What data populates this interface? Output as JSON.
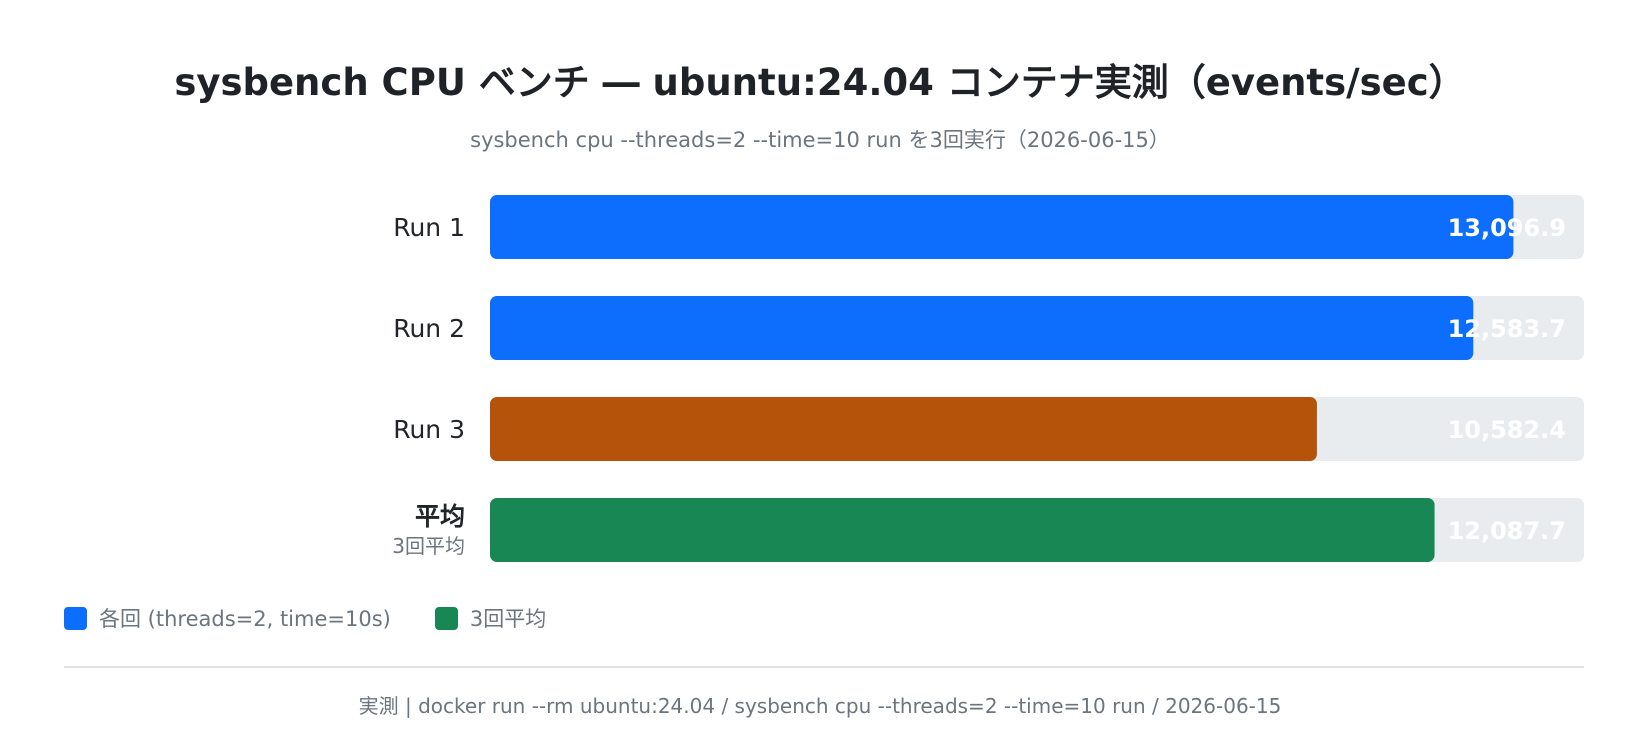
{
  "header": {
    "title": "sysbench CPU ベンチ ― ubuntu:24.04 コンテナ実測（events/sec）",
    "subtitle": "sysbench cpu --threads=2 --time=10 run を3回実行（2026-06-15）"
  },
  "chart_data": {
    "type": "bar",
    "orientation": "horizontal",
    "title": "sysbench CPU ベンチ ― ubuntu:24.04 コンテナ実測（events/sec）",
    "subtitle": "sysbench cpu --threads=2 --time=10 run を3回実行（2026-06-15）",
    "xlim": [
      0,
      14000
    ],
    "grid": false,
    "legend_position": "bottom-left",
    "track_color": "#e9ecef",
    "value_label_color": "#ffffff",
    "bars": [
      {
        "label": "Run 1",
        "sublabel": "",
        "value": 13096.9,
        "value_label": "13,096.9",
        "color": "#0d6efd"
      },
      {
        "label": "Run 2",
        "sublabel": "",
        "value": 12583.7,
        "value_label": "12,583.7",
        "color": "#0d6efd"
      },
      {
        "label": "Run 3",
        "sublabel": "",
        "value": 10582.4,
        "value_label": "10,582.4",
        "color": "#b5530b"
      },
      {
        "label": "平均",
        "sublabel": "3回平均",
        "value": 12087.7,
        "value_label": "12,087.7",
        "color": "#198754"
      }
    ]
  },
  "legend": {
    "items": [
      {
        "label": "各回 (threads=2, time=10s)",
        "color": "#0d6efd"
      },
      {
        "label": "3回平均",
        "color": "#198754"
      }
    ]
  },
  "footer": {
    "text": "実測 | docker run --rm ubuntu:24.04 / sysbench cpu --threads=2 --time=10 run / 2026-06-15"
  }
}
